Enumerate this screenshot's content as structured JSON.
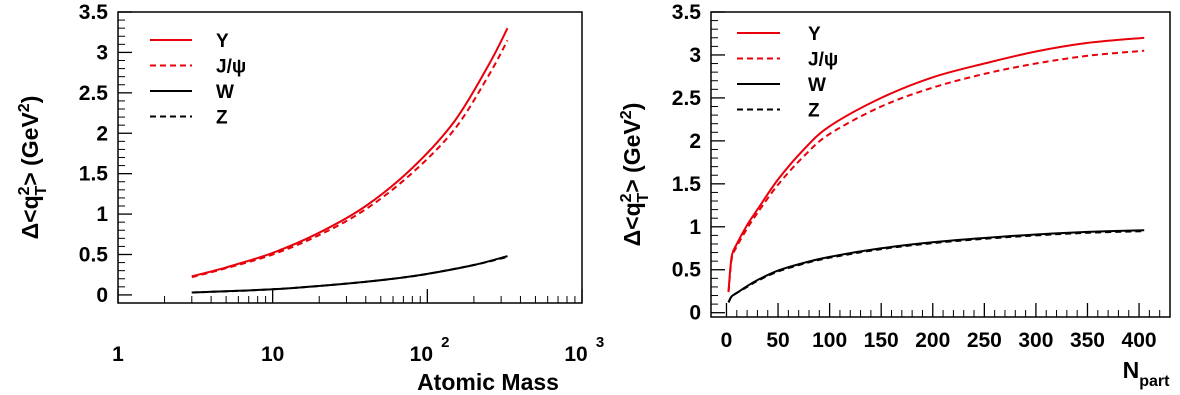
{
  "chart_data": [
    {
      "type": "line",
      "xlabel": "Atomic Mass",
      "ylabel_prefix": "Δ<q",
      "ylabel_sup": "2",
      "ylabel_sub": "T",
      "ylabel_mid": "> (GeV",
      "ylabel_sup2": "2",
      "ylabel_end": ")",
      "xscale": "log",
      "xlim": [
        1,
        1000
      ],
      "ylim": [
        -0.1,
        3.5
      ],
      "xticks": [
        {
          "value": 1,
          "base": "1",
          "exp": ""
        },
        {
          "value": 10,
          "base": "10",
          "exp": ""
        },
        {
          "value": 100,
          "base": "10",
          "exp": "2"
        },
        {
          "value": 1000,
          "base": "10",
          "exp": "3"
        }
      ],
      "yticks": [
        0,
        0.5,
        1,
        1.5,
        2,
        2.5,
        3,
        3.5
      ],
      "yticklabels": [
        "0",
        "0.5",
        "1",
        "1.5",
        "2",
        "2.5",
        "3",
        "3.5"
      ],
      "legend_placement": "top-left",
      "series": [
        {
          "name": "Υ",
          "color": "#e8000b",
          "dash": "solid",
          "x": [
            3,
            5,
            10,
            20,
            40,
            80,
            150,
            250,
            330
          ],
          "y": [
            0.23,
            0.34,
            0.52,
            0.77,
            1.1,
            1.57,
            2.15,
            2.85,
            3.3
          ]
        },
        {
          "name": "J/ψ",
          "color": "#e8000b",
          "dash": "dashed",
          "x": [
            3,
            5,
            10,
            20,
            40,
            80,
            150,
            250,
            330
          ],
          "y": [
            0.22,
            0.33,
            0.5,
            0.74,
            1.06,
            1.51,
            2.05,
            2.72,
            3.15
          ]
        },
        {
          "name": "W",
          "color": "#000000",
          "dash": "solid",
          "x": [
            3,
            10,
            30,
            60,
            100,
            200,
            330
          ],
          "y": [
            0.03,
            0.07,
            0.14,
            0.2,
            0.26,
            0.37,
            0.48
          ]
        },
        {
          "name": "Z",
          "color": "#000000",
          "dash": "dashed",
          "x": [
            3,
            10,
            30,
            60,
            100,
            200,
            330
          ],
          "y": [
            0.03,
            0.07,
            0.14,
            0.2,
            0.26,
            0.37,
            0.47
          ]
        }
      ]
    },
    {
      "type": "line",
      "xlabel": "N",
      "xlabel_sub": "part",
      "ylabel_prefix": "Δ<q",
      "ylabel_sup": "2",
      "ylabel_sub": "T",
      "ylabel_mid": "> (GeV",
      "ylabel_sup2": "2",
      "ylabel_end": ")",
      "xscale": "linear",
      "xlim": [
        -15,
        430
      ],
      "ylim": [
        -0.05,
        3.5
      ],
      "xticks": [
        {
          "value": 0,
          "base": "0",
          "exp": ""
        },
        {
          "value": 50,
          "base": "50",
          "exp": ""
        },
        {
          "value": 100,
          "base": "100",
          "exp": ""
        },
        {
          "value": 150,
          "base": "150",
          "exp": ""
        },
        {
          "value": 200,
          "base": "200",
          "exp": ""
        },
        {
          "value": 250,
          "base": "250",
          "exp": ""
        },
        {
          "value": 300,
          "base": "300",
          "exp": ""
        },
        {
          "value": 350,
          "base": "350",
          "exp": ""
        },
        {
          "value": 400,
          "base": "400",
          "exp": ""
        }
      ],
      "yticks": [
        0,
        0.5,
        1,
        1.5,
        2,
        2.5,
        3,
        3.5
      ],
      "yticklabels": [
        "0",
        "0.5",
        "1",
        "1.5",
        "2",
        "2.5",
        "3",
        "3.5"
      ],
      "legend_placement": "top-left",
      "series": [
        {
          "name": "Υ",
          "color": "#e8000b",
          "dash": "solid",
          "x": [
            2,
            5,
            10,
            20,
            30,
            50,
            75,
            100,
            150,
            200,
            250,
            300,
            350,
            405
          ],
          "y": [
            0.25,
            0.65,
            0.8,
            1.02,
            1.2,
            1.55,
            1.9,
            2.17,
            2.5,
            2.74,
            2.9,
            3.04,
            3.14,
            3.2
          ]
        },
        {
          "name": "J/ψ",
          "color": "#e8000b",
          "dash": "dashed",
          "x": [
            2,
            5,
            10,
            20,
            30,
            50,
            75,
            100,
            150,
            200,
            250,
            300,
            350,
            405
          ],
          "y": [
            0.24,
            0.62,
            0.77,
            0.98,
            1.16,
            1.49,
            1.82,
            2.08,
            2.4,
            2.62,
            2.78,
            2.9,
            2.99,
            3.05
          ]
        },
        {
          "name": "W",
          "color": "#000000",
          "dash": "solid",
          "x": [
            2,
            5,
            10,
            20,
            30,
            50,
            75,
            100,
            150,
            200,
            250,
            300,
            350,
            405
          ],
          "y": [
            0.12,
            0.19,
            0.23,
            0.31,
            0.38,
            0.49,
            0.58,
            0.65,
            0.75,
            0.82,
            0.87,
            0.91,
            0.94,
            0.96
          ]
        },
        {
          "name": "Z",
          "color": "#000000",
          "dash": "dashed",
          "x": [
            2,
            5,
            10,
            20,
            30,
            50,
            75,
            100,
            150,
            200,
            250,
            300,
            350,
            405
          ],
          "y": [
            0.12,
            0.19,
            0.23,
            0.3,
            0.37,
            0.48,
            0.57,
            0.64,
            0.74,
            0.81,
            0.86,
            0.9,
            0.93,
            0.95
          ]
        }
      ]
    }
  ]
}
